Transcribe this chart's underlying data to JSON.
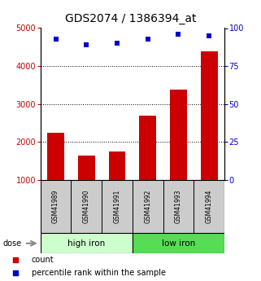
{
  "title": "GDS2074 / 1386394_at",
  "categories": [
    "GSM41989",
    "GSM41990",
    "GSM41991",
    "GSM41992",
    "GSM41993",
    "GSM41994"
  ],
  "bar_values": [
    2250,
    1650,
    1750,
    2700,
    3380,
    4380
  ],
  "scatter_values": [
    93,
    89,
    90,
    93,
    96,
    95
  ],
  "ylim_left": [
    1000,
    5000
  ],
  "ylim_right": [
    0,
    100
  ],
  "yticks_left": [
    1000,
    2000,
    3000,
    4000,
    5000
  ],
  "yticks_right": [
    0,
    25,
    50,
    75,
    100
  ],
  "bar_color": "#cc0000",
  "scatter_color": "#0000cc",
  "left_tick_color": "#cc0000",
  "right_tick_color": "#0000cc",
  "grid_lines": [
    2000,
    3000,
    4000
  ],
  "group1_label": "high iron",
  "group2_label": "low iron",
  "group1_color": "#ccffcc",
  "group2_color": "#55dd55",
  "dose_label": "dose",
  "legend_count": "count",
  "legend_percentile": "percentile rank within the sample",
  "title_fontsize": 10,
  "tick_fontsize": 7,
  "label_fontsize": 7.5,
  "cat_fontsize": 5.5,
  "group_fontsize": 7.5
}
